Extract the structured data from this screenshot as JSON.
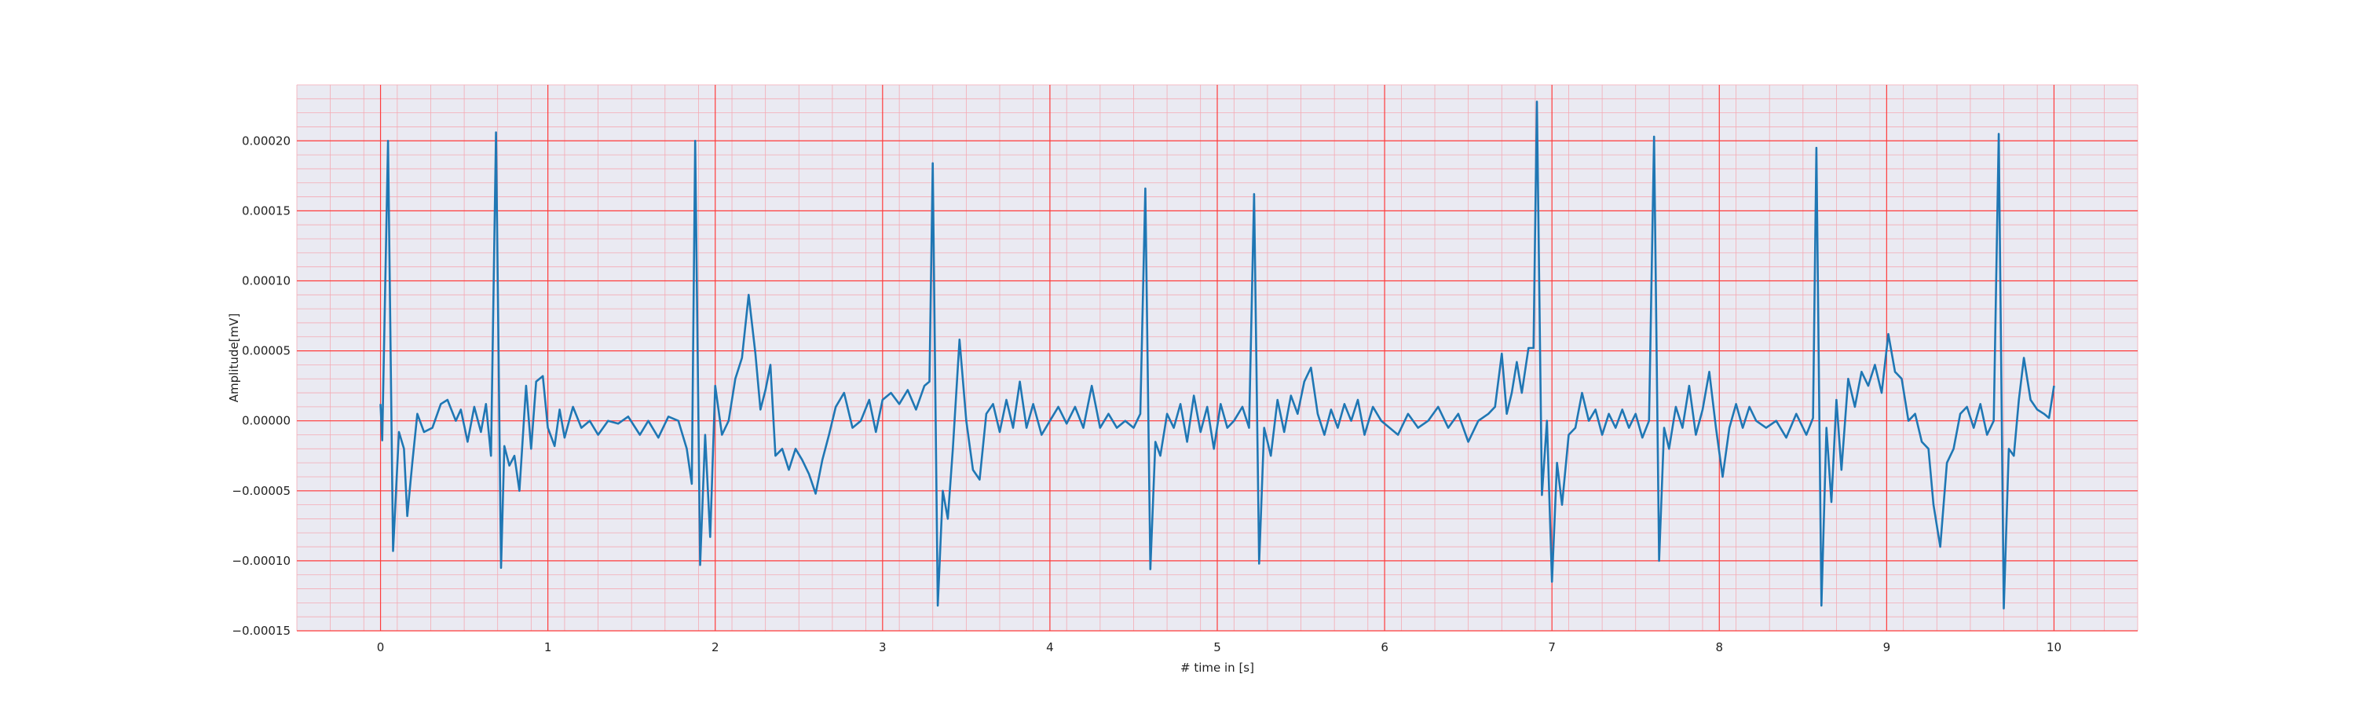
{
  "chart_data": {
    "type": "line",
    "title": "",
    "xlabel": "# time in [s]",
    "ylabel": "Amplitude[mV]",
    "xlim": [
      -0.5,
      10.5
    ],
    "ylim": [
      -0.00015,
      0.00024
    ],
    "x_ticks": [
      0,
      1,
      2,
      3,
      4,
      5,
      6,
      7,
      8,
      9,
      10
    ],
    "x_tick_labels": [
      "0",
      "1",
      "2",
      "3",
      "4",
      "5",
      "6",
      "7",
      "8",
      "9",
      "10"
    ],
    "y_ticks": [
      -0.00015,
      -0.0001,
      -5e-05,
      0.0,
      5e-05,
      0.0001,
      0.00015,
      0.0002
    ],
    "y_tick_labels": [
      "−0.00015",
      "−0.00010",
      "−0.00005",
      "0.00000",
      "0.00005",
      "0.00010",
      "0.00015",
      "0.00020"
    ],
    "grid": true,
    "minor_grid": true,
    "colors": {
      "background": "#eaeaf2",
      "major_grid": "#ff3b3b",
      "minor_grid": "#f4aab4",
      "line": "#1f77b4"
    },
    "series": [
      {
        "values": [
          [
            0.0,
            1.2e-05
          ],
          [
            0.01,
            -1.4e-05
          ],
          [
            0.045,
            0.0002
          ],
          [
            0.075,
            -9.3e-05
          ],
          [
            0.11,
            -8e-06
          ],
          [
            0.14,
            -2e-05
          ],
          [
            0.16,
            -6.8e-05
          ],
          [
            0.19,
            -3e-05
          ],
          [
            0.22,
            5e-06
          ],
          [
            0.26,
            -8e-06
          ],
          [
            0.31,
            -5e-06
          ],
          [
            0.36,
            1.2e-05
          ],
          [
            0.4,
            1.5e-05
          ],
          [
            0.45,
            0.0
          ],
          [
            0.48,
            8e-06
          ],
          [
            0.52,
            -1.5e-05
          ],
          [
            0.56,
            1e-05
          ],
          [
            0.6,
            -8e-06
          ],
          [
            0.63,
            1.2e-05
          ],
          [
            0.66,
            -2.5e-05
          ],
          [
            0.69,
            0.000206
          ],
          [
            0.72,
            -0.000105
          ],
          [
            0.74,
            -1.8e-05
          ],
          [
            0.77,
            -3.2e-05
          ],
          [
            0.8,
            -2.5e-05
          ],
          [
            0.83,
            -5e-05
          ],
          [
            0.87,
            2.5e-05
          ],
          [
            0.9,
            -2e-05
          ],
          [
            0.93,
            2.8e-05
          ],
          [
            0.97,
            3.2e-05
          ],
          [
            1.0,
            -5e-06
          ],
          [
            1.04,
            -1.8e-05
          ],
          [
            1.07,
            8e-06
          ],
          [
            1.1,
            -1.2e-05
          ],
          [
            1.15,
            1e-05
          ],
          [
            1.2,
            -5e-06
          ],
          [
            1.25,
            0.0
          ],
          [
            1.3,
            -1e-05
          ],
          [
            1.36,
            0.0
          ],
          [
            1.42,
            -2e-06
          ],
          [
            1.48,
            3e-06
          ],
          [
            1.55,
            -1e-05
          ],
          [
            1.6,
            0.0
          ],
          [
            1.66,
            -1.2e-05
          ],
          [
            1.72,
            3e-06
          ],
          [
            1.78,
            0.0
          ],
          [
            1.83,
            -2e-05
          ],
          [
            1.86,
            -4.5e-05
          ],
          [
            1.88,
            0.0002
          ],
          [
            1.91,
            -0.000103
          ],
          [
            1.94,
            -1e-05
          ],
          [
            1.97,
            -8.3e-05
          ],
          [
            2.0,
            2.5e-05
          ],
          [
            2.04,
            -1e-05
          ],
          [
            2.08,
            0.0
          ],
          [
            2.12,
            3e-05
          ],
          [
            2.16,
            4.5e-05
          ],
          [
            2.2,
            9e-05
          ],
          [
            2.24,
            4.8e-05
          ],
          [
            2.27,
            8e-06
          ],
          [
            2.3,
            2.2e-05
          ],
          [
            2.33,
            4e-05
          ],
          [
            2.36,
            -2.5e-05
          ],
          [
            2.4,
            -2e-05
          ],
          [
            2.44,
            -3.5e-05
          ],
          [
            2.48,
            -2e-05
          ],
          [
            2.52,
            -2.8e-05
          ],
          [
            2.56,
            -3.8e-05
          ],
          [
            2.6,
            -5.2e-05
          ],
          [
            2.64,
            -2.8e-05
          ],
          [
            2.68,
            -1e-05
          ],
          [
            2.72,
            1e-05
          ],
          [
            2.77,
            2e-05
          ],
          [
            2.82,
            -5e-06
          ],
          [
            2.87,
            0.0
          ],
          [
            2.92,
            1.5e-05
          ],
          [
            2.96,
            -8e-06
          ],
          [
            3.0,
            1.5e-05
          ],
          [
            3.05,
            2e-05
          ],
          [
            3.1,
            1.2e-05
          ],
          [
            3.15,
            2.2e-05
          ],
          [
            3.2,
            8e-06
          ],
          [
            3.25,
            2.5e-05
          ],
          [
            3.28,
            2.8e-05
          ],
          [
            3.3,
            0.000184
          ],
          [
            3.33,
            -0.000132
          ],
          [
            3.36,
            -5e-05
          ],
          [
            3.39,
            -7e-05
          ],
          [
            3.42,
            -2e-05
          ],
          [
            3.46,
            5.8e-05
          ],
          [
            3.5,
            0.0
          ],
          [
            3.54,
            -3.5e-05
          ],
          [
            3.58,
            -4.2e-05
          ],
          [
            3.62,
            5e-06
          ],
          [
            3.66,
            1.2e-05
          ],
          [
            3.7,
            -8e-06
          ],
          [
            3.74,
            1.5e-05
          ],
          [
            3.78,
            -5e-06
          ],
          [
            3.82,
            2.8e-05
          ],
          [
            3.86,
            -5e-06
          ],
          [
            3.9,
            1.2e-05
          ],
          [
            3.95,
            -1e-05
          ],
          [
            4.0,
            0.0
          ],
          [
            4.05,
            1e-05
          ],
          [
            4.1,
            -2e-06
          ],
          [
            4.15,
            1e-05
          ],
          [
            4.2,
            -5e-06
          ],
          [
            4.25,
            2.5e-05
          ],
          [
            4.3,
            -5e-06
          ],
          [
            4.35,
            5e-06
          ],
          [
            4.4,
            -5e-06
          ],
          [
            4.45,
            0.0
          ],
          [
            4.5,
            -5e-06
          ],
          [
            4.54,
            5e-06
          ],
          [
            4.57,
            0.000166
          ],
          [
            4.6,
            -0.000106
          ],
          [
            4.63,
            -1.5e-05
          ],
          [
            4.66,
            -2.5e-05
          ],
          [
            4.7,
            5e-06
          ],
          [
            4.74,
            -5e-06
          ],
          [
            4.78,
            1.2e-05
          ],
          [
            4.82,
            -1.5e-05
          ],
          [
            4.86,
            1.8e-05
          ],
          [
            4.9,
            -8e-06
          ],
          [
            4.94,
            1e-05
          ],
          [
            4.98,
            -2e-05
          ],
          [
            5.02,
            1.2e-05
          ],
          [
            5.06,
            -5e-06
          ],
          [
            5.1,
            0.0
          ],
          [
            5.15,
            1e-05
          ],
          [
            5.19,
            -5e-06
          ],
          [
            5.22,
            0.000162
          ],
          [
            5.25,
            -0.000102
          ],
          [
            5.28,
            -5e-06
          ],
          [
            5.32,
            -2.5e-05
          ],
          [
            5.36,
            1.5e-05
          ],
          [
            5.4,
            -8e-06
          ],
          [
            5.44,
            1.8e-05
          ],
          [
            5.48,
            5e-06
          ],
          [
            5.52,
            2.8e-05
          ],
          [
            5.56,
            3.8e-05
          ],
          [
            5.6,
            5e-06
          ],
          [
            5.64,
            -1e-05
          ],
          [
            5.68,
            8e-06
          ],
          [
            5.72,
            -5e-06
          ],
          [
            5.76,
            1.2e-05
          ],
          [
            5.8,
            0.0
          ],
          [
            5.84,
            1.5e-05
          ],
          [
            5.88,
            -1e-05
          ],
          [
            5.93,
            1e-05
          ],
          [
            5.98,
            0.0
          ],
          [
            6.03,
            -5e-06
          ],
          [
            6.08,
            -1e-05
          ],
          [
            6.14,
            5e-06
          ],
          [
            6.2,
            -5e-06
          ],
          [
            6.26,
            0.0
          ],
          [
            6.32,
            1e-05
          ],
          [
            6.38,
            -5e-06
          ],
          [
            6.44,
            5e-06
          ],
          [
            6.5,
            -1.5e-05
          ],
          [
            6.56,
            0.0
          ],
          [
            6.62,
            5e-06
          ],
          [
            6.66,
            1e-05
          ],
          [
            6.7,
            4.8e-05
          ],
          [
            6.73,
            5e-06
          ],
          [
            6.76,
            2e-05
          ],
          [
            6.79,
            4.2e-05
          ],
          [
            6.82,
            2e-05
          ],
          [
            6.86,
            5.2e-05
          ],
          [
            6.89,
            5.2e-05
          ],
          [
            6.91,
            0.000228
          ],
          [
            6.94,
            -5.3e-05
          ],
          [
            6.97,
            0.0
          ],
          [
            7.0,
            -0.000115
          ],
          [
            7.03,
            -3e-05
          ],
          [
            7.06,
            -6e-05
          ],
          [
            7.1,
            -1e-05
          ],
          [
            7.14,
            -5e-06
          ],
          [
            7.18,
            2e-05
          ],
          [
            7.22,
            0.0
          ],
          [
            7.26,
            8e-06
          ],
          [
            7.3,
            -1e-05
          ],
          [
            7.34,
            5e-06
          ],
          [
            7.38,
            -5e-06
          ],
          [
            7.42,
            8e-06
          ],
          [
            7.46,
            -5e-06
          ],
          [
            7.5,
            5e-06
          ],
          [
            7.54,
            -1.2e-05
          ],
          [
            7.58,
            0.0
          ],
          [
            7.61,
            0.000203
          ],
          [
            7.64,
            -0.0001
          ],
          [
            7.67,
            -5e-06
          ],
          [
            7.7,
            -2e-05
          ],
          [
            7.74,
            1e-05
          ],
          [
            7.78,
            -5e-06
          ],
          [
            7.82,
            2.5e-05
          ],
          [
            7.86,
            -1e-05
          ],
          [
            7.9,
            8e-06
          ],
          [
            7.94,
            3.5e-05
          ],
          [
            7.98,
            -5e-06
          ],
          [
            8.02,
            -4e-05
          ],
          [
            8.06,
            -5e-06
          ],
          [
            8.1,
            1.2e-05
          ],
          [
            8.14,
            -5e-06
          ],
          [
            8.18,
            1e-05
          ],
          [
            8.22,
            0.0
          ],
          [
            8.28,
            -5e-06
          ],
          [
            8.34,
            0.0
          ],
          [
            8.4,
            -1.2e-05
          ],
          [
            8.46,
            5e-06
          ],
          [
            8.52,
            -1e-05
          ],
          [
            8.56,
            2e-06
          ],
          [
            8.58,
            0.000195
          ],
          [
            8.61,
            -0.000132
          ],
          [
            8.64,
            -5e-06
          ],
          [
            8.67,
            -5.8e-05
          ],
          [
            8.7,
            1.5e-05
          ],
          [
            8.73,
            -3.5e-05
          ],
          [
            8.77,
            3e-05
          ],
          [
            8.81,
            1e-05
          ],
          [
            8.85,
            3.5e-05
          ],
          [
            8.89,
            2.5e-05
          ],
          [
            8.93,
            4e-05
          ],
          [
            8.97,
            2e-05
          ],
          [
            9.01,
            6.2e-05
          ],
          [
            9.05,
            3.5e-05
          ],
          [
            9.09,
            3e-05
          ],
          [
            9.13,
            0.0
          ],
          [
            9.17,
            5e-06
          ],
          [
            9.21,
            -1.5e-05
          ],
          [
            9.25,
            -2e-05
          ],
          [
            9.28,
            -6e-05
          ],
          [
            9.32,
            -9e-05
          ],
          [
            9.36,
            -3e-05
          ],
          [
            9.4,
            -2e-05
          ],
          [
            9.44,
            5e-06
          ],
          [
            9.48,
            1e-05
          ],
          [
            9.52,
            -5e-06
          ],
          [
            9.56,
            1.2e-05
          ],
          [
            9.6,
            -1e-05
          ],
          [
            9.64,
            0.0
          ],
          [
            9.67,
            0.000205
          ],
          [
            9.7,
            -0.000134
          ],
          [
            9.73,
            -2e-05
          ],
          [
            9.76,
            -2.5e-05
          ],
          [
            9.79,
            1.5e-05
          ],
          [
            9.82,
            4.5e-05
          ],
          [
            9.86,
            1.5e-05
          ],
          [
            9.9,
            8e-06
          ],
          [
            9.94,
            5e-06
          ],
          [
            9.97,
            2e-06
          ],
          [
            10.0,
            2.5e-05
          ]
        ]
      }
    ]
  }
}
